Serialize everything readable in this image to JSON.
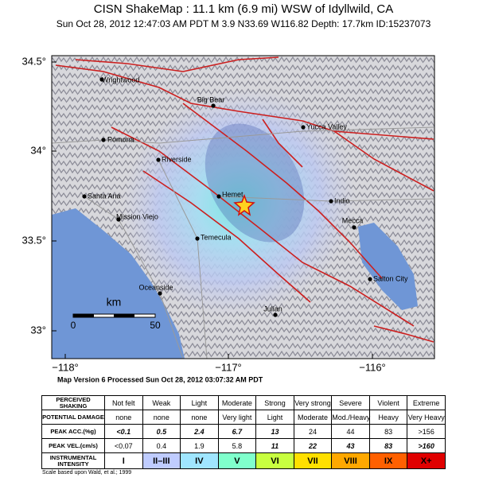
{
  "header": {
    "title": "CISN ShakeMap : 11.1 km (6.9 mi) WSW of Idyllwild, CA",
    "subtitle": "Sun Oct 28, 2012 12:47:03 AM PDT   M 3.9   N33.69 W116.82   Depth: 17.7km   ID:15237073"
  },
  "map": {
    "lat_ticks": [
      "34.5°",
      "34°",
      "33.5°",
      "33°"
    ],
    "lon_ticks": [
      "−118°",
      "−117°",
      "−116°"
    ],
    "cities": [
      {
        "label": "Wrightwood"
      },
      {
        "label": "Big Bear"
      },
      {
        "label": "Yucca Valley"
      },
      {
        "label": "Pomona"
      },
      {
        "label": "Riverside"
      },
      {
        "label": "Santa Ana"
      },
      {
        "label": "Hemet"
      },
      {
        "label": "Indio"
      },
      {
        "label": "Mission Viejo"
      },
      {
        "label": "Mecca"
      },
      {
        "label": "Temecula"
      },
      {
        "label": "Salton City"
      },
      {
        "label": "Oceanside"
      },
      {
        "label": "Julian"
      }
    ],
    "scale_bar": {
      "unit": "km",
      "ticks": [
        "0",
        "50"
      ]
    },
    "version_note": "Map Version 6 Processed Sun Oct 28, 2012 03:07:32 AM PDT"
  },
  "table": {
    "rows": [
      [
        "PERCEIVED SHAKING",
        "Not felt",
        "Weak",
        "Light",
        "Moderate",
        "Strong",
        "Very strong",
        "Severe",
        "Violent",
        "Extreme"
      ],
      [
        "POTENTIAL DAMAGE",
        "none",
        "none",
        "none",
        "Very light",
        "Light",
        "Moderate",
        "Mod./Heavy",
        "Heavy",
        "Very Heavy"
      ],
      [
        "PEAK ACC.(%g)",
        "<0.1",
        "0.5",
        "2.4",
        "6.7",
        "13",
        "24",
        "44",
        "83",
        ">156"
      ],
      [
        "PEAK VEL.(cm/s)",
        "<0.07",
        "0.4",
        "1.9",
        "5.8",
        "11",
        "22",
        "43",
        "83",
        ">160"
      ],
      [
        "INSTRUMENTAL INTENSITY",
        "I",
        "II–III",
        "IV",
        "V",
        "VI",
        "VII",
        "VIII",
        "IX",
        "X+"
      ]
    ]
  },
  "footer": "Scale based upon Wald, et al.; 1999"
}
